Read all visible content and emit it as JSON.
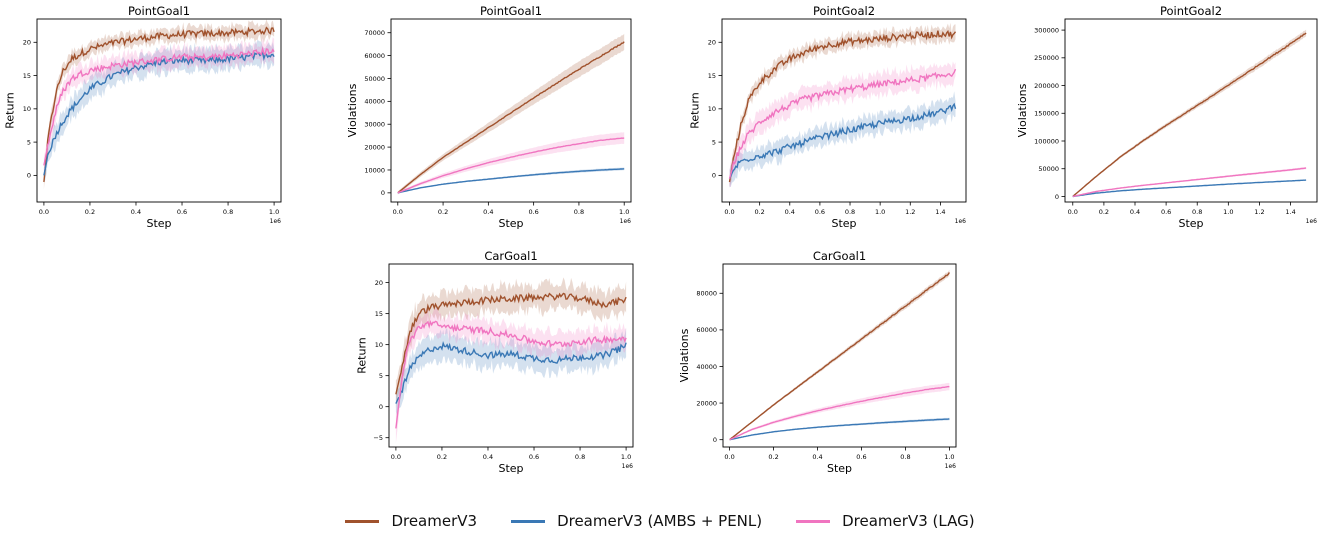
{
  "series_styles": [
    {
      "name": "DreamerV3",
      "color": "#a0522d"
    },
    {
      "name": "DreamerV3 (AMBS + PENL)",
      "color": "#3a78b5"
    },
    {
      "name": "DreamerV3 (LAG)",
      "color": "#f075c0"
    }
  ],
  "legend": {
    "placement": "bottom-center",
    "items": [
      "DreamerV3",
      "DreamerV3 (AMBS + PENL)",
      "DreamerV3 (LAG)"
    ]
  },
  "chart_data": [
    {
      "type": "line",
      "title": "PointGoal1",
      "xlabel": "Step",
      "ylabel": "Return",
      "x_scale_label": "1e6",
      "xlim": [
        -0.03,
        1.03
      ],
      "ylim": [
        -4,
        23.5
      ],
      "x_ticks": [
        0.0,
        0.2,
        0.4,
        0.6,
        0.8,
        1.0
      ],
      "x_tick_labels": [
        "0.0",
        "0.2",
        "0.4",
        "0.6",
        "0.8",
        "1.0"
      ],
      "y_ticks": [
        0,
        5,
        10,
        15,
        20
      ],
      "y_tick_labels": [
        "0",
        "5",
        "10",
        "15",
        "20"
      ],
      "grid": false,
      "shaded_band": true,
      "series": [
        {
          "name": "DreamerV3",
          "x": [
            0.0,
            0.02,
            0.05,
            0.08,
            0.12,
            0.16,
            0.2,
            0.3,
            0.4,
            0.5,
            0.6,
            0.7,
            0.8,
            0.9,
            1.0
          ],
          "y": [
            -1,
            6,
            12,
            15.5,
            17.5,
            18.3,
            19.0,
            19.9,
            20.5,
            20.9,
            21.2,
            21.3,
            21.4,
            21.6,
            21.8
          ],
          "band": 1.0
        },
        {
          "name": "DreamerV3 (AMBS + PENL)",
          "x": [
            0.0,
            0.02,
            0.05,
            0.08,
            0.12,
            0.16,
            0.2,
            0.3,
            0.4,
            0.5,
            0.6,
            0.7,
            0.8,
            0.9,
            1.0
          ],
          "y": [
            0,
            3.5,
            6,
            8,
            10,
            11.5,
            13,
            15,
            16.2,
            17.0,
            17.3,
            17.2,
            17.5,
            17.8,
            18.3
          ],
          "band": 1.6
        },
        {
          "name": "DreamerV3 (LAG)",
          "x": [
            0.0,
            0.02,
            0.05,
            0.08,
            0.12,
            0.16,
            0.2,
            0.3,
            0.4,
            0.5,
            0.6,
            0.7,
            0.8,
            0.9,
            1.0
          ],
          "y": [
            1.5,
            5,
            9.5,
            12.5,
            14.5,
            15.3,
            15.8,
            16.5,
            17.0,
            17.4,
            17.8,
            17.7,
            18.0,
            18.3,
            18.8
          ],
          "band": 1.4
        }
      ]
    },
    {
      "type": "line",
      "title": "PointGoal1",
      "xlabel": "Step",
      "ylabel": "Violations",
      "x_scale_label": "1e6",
      "xlim": [
        -0.03,
        1.03
      ],
      "ylim": [
        -4000,
        76000
      ],
      "x_ticks": [
        0.0,
        0.2,
        0.4,
        0.6,
        0.8,
        1.0
      ],
      "x_tick_labels": [
        "0.0",
        "0.2",
        "0.4",
        "0.6",
        "0.8",
        "1.0"
      ],
      "y_ticks": [
        0,
        10000,
        20000,
        30000,
        40000,
        50000,
        60000,
        70000
      ],
      "y_tick_labels": [
        "0",
        "10000",
        "20000",
        "30000",
        "40000",
        "50000",
        "60000",
        "70000"
      ],
      "grid": false,
      "shaded_band": true,
      "series": [
        {
          "name": "DreamerV3",
          "x": [
            0.0,
            0.1,
            0.2,
            0.3,
            0.4,
            0.5,
            0.6,
            0.7,
            0.8,
            0.9,
            1.0
          ],
          "y": [
            0,
            8000,
            15500,
            22000,
            28500,
            35000,
            41500,
            47800,
            54000,
            60000,
            66000
          ],
          "band": 3500
        },
        {
          "name": "DreamerV3 (AMBS + PENL)",
          "x": [
            0.0,
            0.1,
            0.2,
            0.3,
            0.4,
            0.5,
            0.6,
            0.7,
            0.8,
            0.9,
            1.0
          ],
          "y": [
            0,
            2200,
            3800,
            5000,
            6000,
            7000,
            7900,
            8700,
            9400,
            10000,
            10500
          ],
          "band": 600
        },
        {
          "name": "DreamerV3 (LAG)",
          "x": [
            0.0,
            0.1,
            0.2,
            0.3,
            0.4,
            0.5,
            0.6,
            0.7,
            0.8,
            0.9,
            1.0
          ],
          "y": [
            0,
            4000,
            7500,
            10500,
            13200,
            15600,
            17800,
            19800,
            21500,
            23000,
            24000
          ],
          "band": 2500
        }
      ]
    },
    {
      "type": "line",
      "title": "PointGoal2",
      "xlabel": "Step",
      "ylabel": "Return",
      "x_scale_label": "1e6",
      "xlim": [
        -0.05,
        1.57
      ],
      "ylim": [
        -4,
        23.5
      ],
      "x_ticks": [
        0.0,
        0.2,
        0.4,
        0.6,
        0.8,
        1.0,
        1.2,
        1.4
      ],
      "x_tick_labels": [
        "0.0",
        "0.2",
        "0.4",
        "0.6",
        "0.8",
        "1.0",
        "1.2",
        "1.4"
      ],
      "y_ticks": [
        0,
        5,
        10,
        15,
        20
      ],
      "y_tick_labels": [
        "0",
        "5",
        "10",
        "15",
        "20"
      ],
      "grid": false,
      "shaded_band": true,
      "series": [
        {
          "name": "DreamerV3",
          "x": [
            0.0,
            0.03,
            0.07,
            0.12,
            0.2,
            0.3,
            0.4,
            0.5,
            0.6,
            0.7,
            0.8,
            0.9,
            1.0,
            1.1,
            1.2,
            1.3,
            1.4,
            1.5
          ],
          "y": [
            -1,
            3,
            7,
            11,
            14,
            16,
            17.5,
            18.5,
            19.3,
            19.8,
            20.1,
            20.3,
            20.5,
            20.8,
            21.0,
            21.1,
            21.3,
            21.2
          ],
          "band": 1.0
        },
        {
          "name": "DreamerV3 (AMBS + PENL)",
          "x": [
            0.0,
            0.03,
            0.07,
            0.12,
            0.2,
            0.3,
            0.4,
            0.5,
            0.6,
            0.7,
            0.8,
            0.9,
            1.0,
            1.1,
            1.2,
            1.3,
            1.4,
            1.5
          ],
          "y": [
            -0.5,
            1,
            2,
            2.5,
            3,
            3.5,
            4.3,
            5,
            5.7,
            6.3,
            6.8,
            7.3,
            7.8,
            8.2,
            8.6,
            9.0,
            9.5,
            10.5
          ],
          "band": 1.4
        },
        {
          "name": "DreamerV3 (LAG)",
          "x": [
            0.0,
            0.03,
            0.07,
            0.12,
            0.2,
            0.3,
            0.4,
            0.5,
            0.6,
            0.7,
            0.8,
            0.9,
            1.0,
            1.1,
            1.2,
            1.3,
            1.4,
            1.5
          ],
          "y": [
            -0.5,
            2,
            4,
            6,
            8,
            9.5,
            10.5,
            11.5,
            12.0,
            12.5,
            13.0,
            13.3,
            13.7,
            14.0,
            14.3,
            14.6,
            15.0,
            15.5
          ],
          "band": 1.5
        }
      ]
    },
    {
      "type": "line",
      "title": "PointGoal2",
      "xlabel": "Step",
      "ylabel": "Violations",
      "x_scale_label": "1e6",
      "xlim": [
        -0.05,
        1.57
      ],
      "ylim": [
        -10000,
        320000
      ],
      "x_ticks": [
        0.0,
        0.2,
        0.4,
        0.6,
        0.8,
        1.0,
        1.2,
        1.4
      ],
      "x_tick_labels": [
        "0.0",
        "0.2",
        "0.4",
        "0.6",
        "0.8",
        "1.0",
        "1.2",
        "1.4"
      ],
      "y_ticks": [
        0,
        50000,
        100000,
        150000,
        200000,
        250000,
        300000
      ],
      "y_tick_labels": [
        "0",
        "50000",
        "100000",
        "150000",
        "200000",
        "250000",
        "300000"
      ],
      "grid": false,
      "shaded_band": true,
      "series": [
        {
          "name": "DreamerV3",
          "x": [
            0.0,
            0.15,
            0.3,
            0.45,
            0.6,
            0.75,
            0.9,
            1.05,
            1.2,
            1.35,
            1.5
          ],
          "y": [
            0,
            36000,
            70000,
            100000,
            128000,
            155000,
            182000,
            210000,
            238000,
            266000,
            295000
          ],
          "band": 6000
        },
        {
          "name": "DreamerV3 (AMBS + PENL)",
          "x": [
            0.0,
            0.15,
            0.3,
            0.45,
            0.6,
            0.75,
            0.9,
            1.05,
            1.2,
            1.35,
            1.5
          ],
          "y": [
            0,
            6000,
            10000,
            13000,
            15500,
            18000,
            20500,
            23000,
            25200,
            27300,
            29500
          ],
          "band": 800
        },
        {
          "name": "DreamerV3 (LAG)",
          "x": [
            0.0,
            0.15,
            0.3,
            0.45,
            0.6,
            0.75,
            0.9,
            1.05,
            1.2,
            1.35,
            1.5
          ],
          "y": [
            0,
            9000,
            15000,
            20000,
            24500,
            29000,
            33500,
            38000,
            42300,
            46500,
            51000
          ],
          "band": 2000
        }
      ]
    },
    {
      "type": "line",
      "title": "CarGoal1",
      "xlabel": "Step",
      "ylabel": "Return",
      "x_scale_label": "1e6",
      "xlim": [
        -0.03,
        1.03
      ],
      "ylim": [
        -6.5,
        23
      ],
      "x_ticks": [
        0.0,
        0.2,
        0.4,
        0.6,
        0.8,
        1.0
      ],
      "x_tick_labels": [
        "0.0",
        "0.2",
        "0.4",
        "0.6",
        "0.8",
        "1.0"
      ],
      "y_ticks": [
        -5,
        0,
        5,
        10,
        15,
        20
      ],
      "y_tick_labels": [
        "−5",
        "0",
        "5",
        "10",
        "15",
        "20"
      ],
      "grid": false,
      "shaded_band": true,
      "series": [
        {
          "name": "DreamerV3",
          "x": [
            0.0,
            0.03,
            0.06,
            0.1,
            0.15,
            0.2,
            0.3,
            0.4,
            0.5,
            0.6,
            0.7,
            0.8,
            0.9,
            1.0
          ],
          "y": [
            2,
            7,
            12,
            15,
            16,
            16.3,
            16.8,
            17.2,
            17.4,
            17.6,
            17.8,
            17.5,
            16.5,
            17.2
          ],
          "band": 2.0
        },
        {
          "name": "DreamerV3 (AMBS + PENL)",
          "x": [
            0.0,
            0.03,
            0.06,
            0.1,
            0.15,
            0.2,
            0.3,
            0.4,
            0.5,
            0.6,
            0.7,
            0.8,
            0.9,
            1.0
          ],
          "y": [
            0.5,
            3,
            6,
            8,
            9.3,
            9.8,
            9.0,
            8.3,
            8.5,
            7.8,
            7.5,
            8.0,
            8.2,
            9.8
          ],
          "band": 2.0
        },
        {
          "name": "DreamerV3 (LAG)",
          "x": [
            0.0,
            0.03,
            0.06,
            0.1,
            0.15,
            0.2,
            0.3,
            0.4,
            0.5,
            0.6,
            0.7,
            0.8,
            0.9,
            1.0
          ],
          "y": [
            -3.5,
            6,
            10.5,
            12.8,
            13.5,
            13.0,
            12.5,
            12.2,
            11.5,
            10.5,
            10.0,
            10.5,
            10.8,
            11.0
          ],
          "band": 1.8
        }
      ]
    },
    {
      "type": "line",
      "title": "CarGoal1",
      "xlabel": "Step",
      "ylabel": "Violations",
      "x_scale_label": "1e6",
      "xlim": [
        -0.03,
        1.03
      ],
      "ylim": [
        -4000,
        96000
      ],
      "x_ticks": [
        0.0,
        0.2,
        0.4,
        0.6,
        0.8,
        1.0
      ],
      "x_tick_labels": [
        "0.0",
        "0.2",
        "0.4",
        "0.6",
        "0.8",
        "1.0"
      ],
      "y_ticks": [
        0,
        20000,
        40000,
        60000,
        80000
      ],
      "y_tick_labels": [
        "0",
        "20000",
        "40000",
        "60000",
        "80000"
      ],
      "grid": false,
      "shaded_band": true,
      "series": [
        {
          "name": "DreamerV3",
          "x": [
            0.0,
            0.1,
            0.2,
            0.3,
            0.4,
            0.5,
            0.6,
            0.7,
            0.8,
            0.9,
            1.0
          ],
          "y": [
            0,
            9500,
            19000,
            28000,
            37000,
            46000,
            55000,
            64000,
            73000,
            82000,
            91000
          ],
          "band": 1500
        },
        {
          "name": "DreamerV3 (AMBS + PENL)",
          "x": [
            0.0,
            0.1,
            0.2,
            0.3,
            0.4,
            0.5,
            0.6,
            0.7,
            0.8,
            0.9,
            1.0
          ],
          "y": [
            0,
            2500,
            4300,
            5700,
            6800,
            7700,
            8500,
            9300,
            10000,
            10700,
            11300
          ],
          "band": 700
        },
        {
          "name": "DreamerV3 (LAG)",
          "x": [
            0.0,
            0.1,
            0.2,
            0.3,
            0.4,
            0.5,
            0.6,
            0.7,
            0.8,
            0.9,
            1.0
          ],
          "y": [
            0,
            5500,
            9500,
            12800,
            15800,
            18500,
            21000,
            23300,
            25500,
            27500,
            29000
          ],
          "band": 2000
        }
      ]
    }
  ]
}
